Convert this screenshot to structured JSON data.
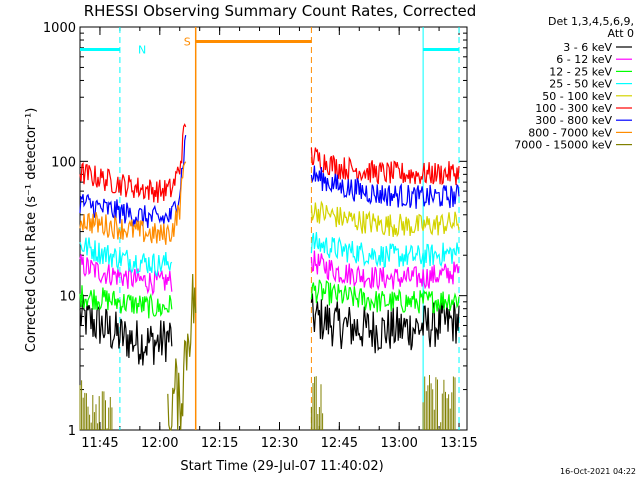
{
  "chart_data": {
    "type": "line",
    "title": "RHESSI Observing Summary Count Rates, Corrected",
    "xlabel": "Start Time (29-Jul-07 11:40:02)",
    "ylabel": "Corrected Count Rate (s⁻¹ detector⁻¹)",
    "y_scale": "log",
    "ylim": [
      1,
      1000
    ],
    "xlim_minutes": [
      11.67,
      13.28
    ],
    "x_ticks": [
      "11:45",
      "12:00",
      "12:15",
      "12:30",
      "12:45",
      "13:00",
      "13:15"
    ],
    "y_ticks": [
      "1",
      "10",
      "100",
      "1000"
    ],
    "legend_header": "Det 1,3,4,5,6,9,",
    "legend_header2": "Att 0",
    "legend_position": "top-right outside",
    "timestamp": "16-Oct-2021 04:22",
    "gap_start": "12:38",
    "data_gap": [
      "12:09",
      "12:38"
    ],
    "series": [
      {
        "name": "3 - 6 keV",
        "color": "#000000",
        "segments": [
          {
            "x": [
              "11:40",
              "11:45",
              "11:50",
              "11:55",
              "12:00",
              "12:03"
            ],
            "y": [
              7,
              6,
              5,
              4.5,
              4.5,
              5
            ]
          },
          {
            "x": [
              "12:38",
              "12:45",
              "12:55",
              "13:05",
              "13:15"
            ],
            "y": [
              7,
              6,
              5.5,
              5.8,
              6.5
            ]
          }
        ]
      },
      {
        "name": "6 - 12 keV",
        "color": "#ff00ff",
        "segments": [
          {
            "x": [
              "11:40",
              "11:45",
              "11:50",
              "11:55",
              "12:00",
              "12:03"
            ],
            "y": [
              17,
              15,
              14,
              13,
              12.5,
              13
            ]
          },
          {
            "x": [
              "12:38",
              "12:45",
              "12:55",
              "13:05",
              "13:15"
            ],
            "y": [
              18,
              15,
              13.5,
              13.5,
              15
            ]
          }
        ]
      },
      {
        "name": "12 - 25 keV",
        "color": "#00ff00",
        "segments": [
          {
            "x": [
              "11:40",
              "11:45",
              "11:50",
              "11:55",
              "12:00",
              "12:03"
            ],
            "y": [
              10,
              9.5,
              9,
              8.5,
              8,
              8.5
            ]
          },
          {
            "x": [
              "12:38",
              "12:45",
              "12:55",
              "13:05",
              "13:15"
            ],
            "y": [
              11,
              10,
              9,
              9,
              9.5
            ]
          }
        ]
      },
      {
        "name": "25 - 50 keV",
        "color": "#00ffff",
        "segments": [
          {
            "x": [
              "11:40",
              "11:45",
              "11:50",
              "11:55",
              "12:00",
              "12:03"
            ],
            "y": [
              24,
              21,
              19,
              18,
              17,
              18
            ]
          },
          {
            "x": [
              "12:38",
              "12:45",
              "12:55",
              "13:05",
              "13:15"
            ],
            "y": [
              25,
              22,
              20,
              19.5,
              21
            ]
          }
        ]
      },
      {
        "name": "50 - 100 keV",
        "color": "#d4d400",
        "segments": [
          {
            "x": [
              "12:38",
              "12:45",
              "12:55",
              "13:05",
              "13:15"
            ],
            "y": [
              44,
              38,
              34,
              33,
              35
            ]
          }
        ]
      },
      {
        "name": "100 - 300 keV",
        "color": "#ff0000",
        "segments": [
          {
            "x": [
              "11:40",
              "11:45",
              "11:50",
              "11:55",
              "12:00",
              "12:03",
              "12:05",
              "12:06.5"
            ],
            "y": [
              82,
              75,
              68,
              63,
              60,
              62,
              90,
              200
            ]
          },
          {
            "x": [
              "12:38",
              "12:45",
              "12:55",
              "13:05",
              "13:15"
            ],
            "y": [
              110,
              90,
              82,
              80,
              82
            ]
          }
        ]
      },
      {
        "name": "300 - 800 keV",
        "color": "#0000ff",
        "segments": [
          {
            "x": [
              "11:40",
              "11:45",
              "11:50",
              "11:55",
              "12:00",
              "12:03",
              "12:05",
              "12:06.5"
            ],
            "y": [
              50,
              45,
              42,
              39,
              37,
              39,
              60,
              150
            ]
          },
          {
            "x": [
              "12:38",
              "12:45",
              "12:55",
              "13:05",
              "13:15"
            ],
            "y": [
              80,
              65,
              57,
              54,
              55
            ]
          }
        ]
      },
      {
        "name": "800 - 7000 keV",
        "color": "#ff8c00",
        "segments": [
          {
            "x": [
              "11:40",
              "11:45",
              "11:50",
              "11:55",
              "12:00",
              "12:03",
              "12:05",
              "12:06.5"
            ],
            "y": [
              37,
              34,
              32,
              30,
              28,
              30,
              45,
              120
            ]
          }
        ]
      },
      {
        "name": "7000 - 15000 keV",
        "color": "#808000",
        "segments": [
          {
            "x": [
              "12:02",
              "12:03",
              "12:04",
              "12:05",
              "12:06",
              "12:07",
              "12:08",
              "12:09"
            ],
            "y": [
              1,
              1.5,
              2,
              1.2,
              3,
              5,
              8,
              10
            ]
          }
        ]
      }
    ],
    "flags": [
      {
        "label": "N",
        "color": "#00ffff",
        "start": "11:40",
        "end": "11:50",
        "level": 680
      },
      {
        "label": "S",
        "color": "#ff8c00",
        "start": "12:09",
        "end": "12:38",
        "level": 780
      },
      {
        "label": "",
        "color": "#00ffff",
        "start": "13:06",
        "end": "13:15",
        "level": 680
      }
    ]
  }
}
